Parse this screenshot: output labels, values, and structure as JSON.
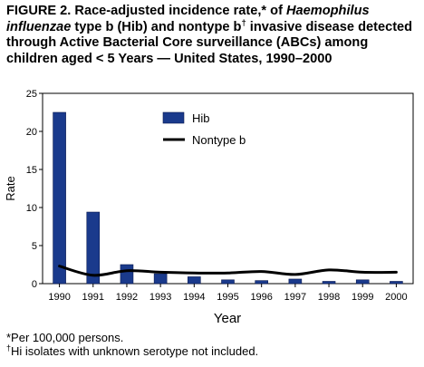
{
  "title": {
    "part1": "FIGURE 2. Race-adjusted incidence rate,* of ",
    "italic": "Haemophilus influenzae",
    "part2": " type b (Hib) and nontype b",
    "dagger": "†",
    "part3": " invasive disease detected through Active Bacterial Core surveillance (ABCs) among children aged < 5 Years — United States, 1990–2000"
  },
  "chart_data": {
    "type": "bar",
    "categories": [
      "1990",
      "1991",
      "1992",
      "1993",
      "1994",
      "1995",
      "1996",
      "1997",
      "1998",
      "1999",
      "2000"
    ],
    "series": [
      {
        "name": "Hib",
        "type": "bar",
        "values": [
          22.5,
          9.4,
          2.5,
          1.3,
          0.9,
          0.5,
          0.4,
          0.6,
          0.3,
          0.5,
          0.3
        ]
      },
      {
        "name": "Nontype b",
        "type": "line",
        "values": [
          2.3,
          1.1,
          1.7,
          1.5,
          1.4,
          1.4,
          1.6,
          1.2,
          1.8,
          1.5,
          1.5
        ]
      }
    ],
    "xlabel": "Year",
    "ylabel": "Rate",
    "ylim": [
      0,
      25
    ],
    "yticks": [
      0,
      5,
      10,
      15,
      20,
      25
    ],
    "grid": false,
    "legend": "top-center",
    "colors": {
      "bar": "#1a3a8c",
      "bar_edge": "#0a1a50",
      "line": "#000000"
    }
  },
  "footnotes": {
    "note1": "*Per 100,000 persons.",
    "note2_mark": "†",
    "note2": "Hi isolates with unknown serotype not included."
  }
}
